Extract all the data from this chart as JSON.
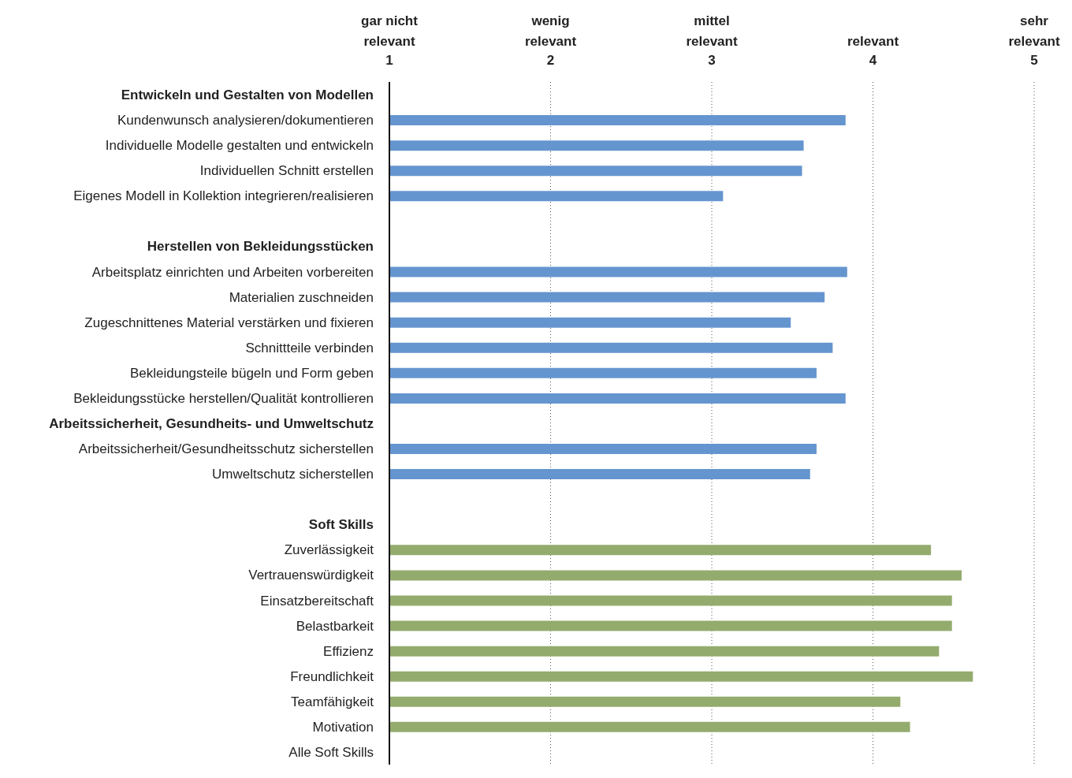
{
  "chart_data": {
    "type": "bar",
    "orientation": "horizontal",
    "categories": [
      "Entwickeln und Gestalten von Modellen",
      "Kundenwunsch analysieren/dokumentieren",
      "Individuelle Modelle gestalten und entwickeln",
      "Individuellen Schnitt erstellen",
      "Eigenes Modell in Kollektion integrieren/realisieren",
      null,
      "Herstellen von Bekleidungsstücken",
      "Arbeitsplatz einrichten und Arbeiten vorbereiten",
      "Materialien zuschneiden",
      "Zugeschnittenes Material verstärken und fixieren",
      "Schnittteile verbinden",
      "Bekleidungsteile bügeln und Form geben",
      "Bekleidungsstücke herstellen/Qualität kontrollieren",
      "Arbeitssicherheit, Gesundheits- und Umweltschutz",
      "Arbeitssicherheit/Gesundheitsschutz sicherstellen",
      "Umweltschutz sicherstellen",
      null,
      "Soft Skills",
      "Zuverlässigkeit",
      "Vertrauenswürdigkeit",
      "Einsatzbereitschaft",
      "Belastbarkeit",
      "Effizienz",
      "Freundlichkeit",
      "Teamfähigkeit",
      "Motivation",
      "Alle Soft Skills"
    ],
    "values": [
      null,
      3.83,
      3.57,
      3.56,
      3.07,
      null,
      null,
      3.84,
      3.7,
      3.49,
      3.75,
      3.65,
      3.83,
      null,
      3.65,
      3.61,
      null,
      null,
      4.36,
      4.55,
      4.49,
      4.49,
      4.41,
      4.62,
      4.17,
      4.23,
      null
    ],
    "colors": [
      null,
      "#6595cf",
      "#6595cf",
      "#6595cf",
      "#6595cf",
      null,
      null,
      "#6595cf",
      "#6595cf",
      "#6595cf",
      "#6595cf",
      "#6595cf",
      "#6595cf",
      null,
      "#6595cf",
      "#6595cf",
      null,
      null,
      "#94ab6e",
      "#94ab6e",
      "#94ab6e",
      "#94ab6e",
      "#94ab6e",
      "#94ab6e",
      "#94ab6e",
      "#94ab6e",
      null
    ],
    "xlim": [
      1,
      5
    ],
    "xticks": [
      1,
      2,
      3,
      4,
      5
    ],
    "annotations": [
      "gar nicht\nrelevant",
      "wenig\nrelevant",
      "mittel\nrelevant",
      "relevant",
      "sehr\nrelevant"
    ],
    "grid": "x",
    "legend": false
  }
}
